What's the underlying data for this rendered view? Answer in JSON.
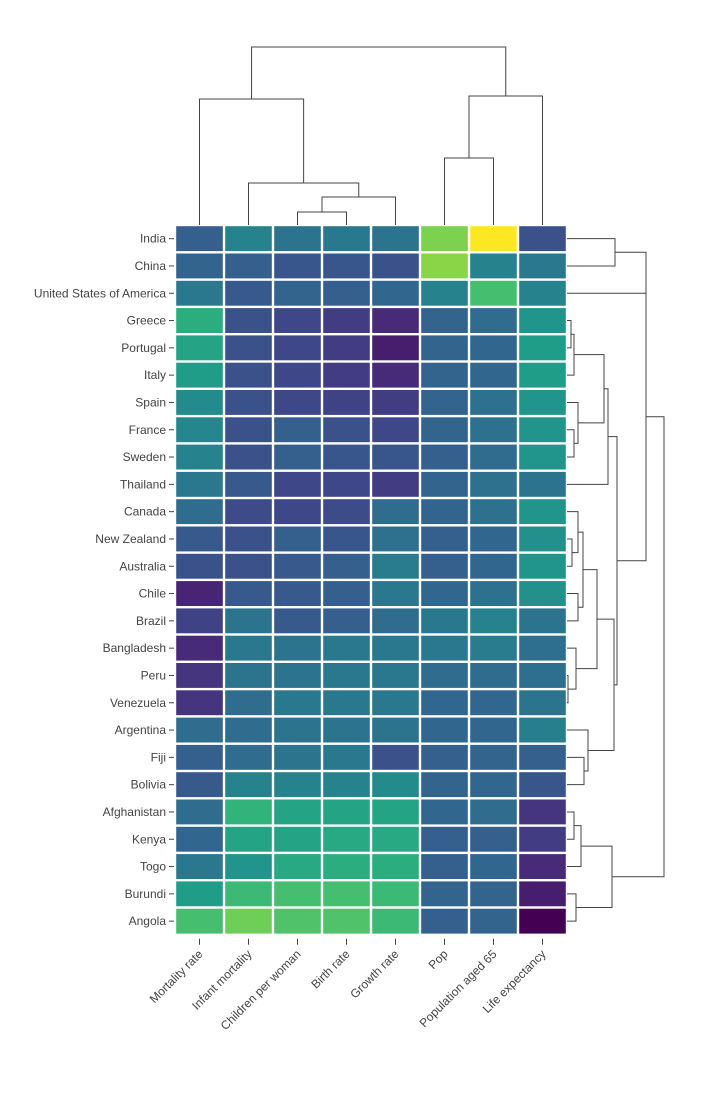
{
  "chart_data": {
    "type": "heatmap",
    "title": "",
    "rows": [
      "India",
      "China",
      "United States of America",
      "Greece",
      "Portugal",
      "Italy",
      "Spain",
      "France",
      "Sweden",
      "Thailand",
      "Canada",
      "New Zealand",
      "Australia",
      "Chile",
      "Brazil",
      "Bangladesh",
      "Peru",
      "Venezuela",
      "Argentina",
      "Fiji",
      "Bolivia",
      "Afghanistan",
      "Kenya",
      "Togo",
      "Burundi",
      "Angola"
    ],
    "columns": [
      "Mortality rate",
      "Infant mortality",
      "Children per woman",
      "Birth rate",
      "Growth rate",
      "Pop",
      "Population aged 65",
      "Life expectancy"
    ],
    "values": [
      [
        0.3,
        0.45,
        0.38,
        0.4,
        0.38,
        0.8,
        1.0,
        0.25
      ],
      [
        0.32,
        0.3,
        0.27,
        0.27,
        0.25,
        0.82,
        0.45,
        0.4
      ],
      [
        0.4,
        0.28,
        0.32,
        0.3,
        0.33,
        0.45,
        0.7,
        0.45
      ],
      [
        0.62,
        0.25,
        0.22,
        0.18,
        0.12,
        0.32,
        0.35,
        0.52
      ],
      [
        0.58,
        0.25,
        0.22,
        0.18,
        0.08,
        0.32,
        0.33,
        0.55
      ],
      [
        0.55,
        0.25,
        0.22,
        0.18,
        0.12,
        0.32,
        0.33,
        0.55
      ],
      [
        0.48,
        0.25,
        0.22,
        0.2,
        0.18,
        0.32,
        0.37,
        0.52
      ],
      [
        0.46,
        0.25,
        0.3,
        0.25,
        0.22,
        0.32,
        0.37,
        0.52
      ],
      [
        0.45,
        0.25,
        0.3,
        0.27,
        0.27,
        0.3,
        0.35,
        0.52
      ],
      [
        0.4,
        0.28,
        0.22,
        0.22,
        0.18,
        0.32,
        0.37,
        0.38
      ],
      [
        0.35,
        0.23,
        0.22,
        0.23,
        0.35,
        0.32,
        0.37,
        0.52
      ],
      [
        0.28,
        0.25,
        0.3,
        0.27,
        0.37,
        0.3,
        0.33,
        0.5
      ],
      [
        0.25,
        0.25,
        0.28,
        0.3,
        0.42,
        0.3,
        0.33,
        0.52
      ],
      [
        0.1,
        0.28,
        0.28,
        0.3,
        0.4,
        0.33,
        0.37,
        0.5
      ],
      [
        0.2,
        0.38,
        0.28,
        0.3,
        0.35,
        0.4,
        0.45,
        0.38
      ],
      [
        0.12,
        0.4,
        0.38,
        0.4,
        0.4,
        0.4,
        0.42,
        0.36
      ],
      [
        0.15,
        0.38,
        0.38,
        0.4,
        0.4,
        0.35,
        0.35,
        0.36
      ],
      [
        0.15,
        0.35,
        0.4,
        0.4,
        0.4,
        0.33,
        0.33,
        0.38
      ],
      [
        0.35,
        0.35,
        0.38,
        0.38,
        0.38,
        0.33,
        0.33,
        0.43
      ],
      [
        0.3,
        0.35,
        0.38,
        0.4,
        0.25,
        0.3,
        0.32,
        0.3
      ],
      [
        0.28,
        0.45,
        0.45,
        0.45,
        0.48,
        0.32,
        0.33,
        0.27
      ],
      [
        0.35,
        0.65,
        0.58,
        0.58,
        0.58,
        0.33,
        0.35,
        0.15
      ],
      [
        0.33,
        0.58,
        0.58,
        0.6,
        0.6,
        0.3,
        0.3,
        0.18
      ],
      [
        0.4,
        0.52,
        0.6,
        0.62,
        0.62,
        0.3,
        0.33,
        0.12
      ],
      [
        0.55,
        0.68,
        0.7,
        0.7,
        0.68,
        0.32,
        0.32,
        0.08
      ],
      [
        0.7,
        0.78,
        0.72,
        0.72,
        0.68,
        0.3,
        0.32,
        0.0
      ]
    ],
    "colormap": "viridis",
    "legend": "none",
    "grid": false,
    "row_dendrogram": "right",
    "column_dendrogram": "top"
  }
}
